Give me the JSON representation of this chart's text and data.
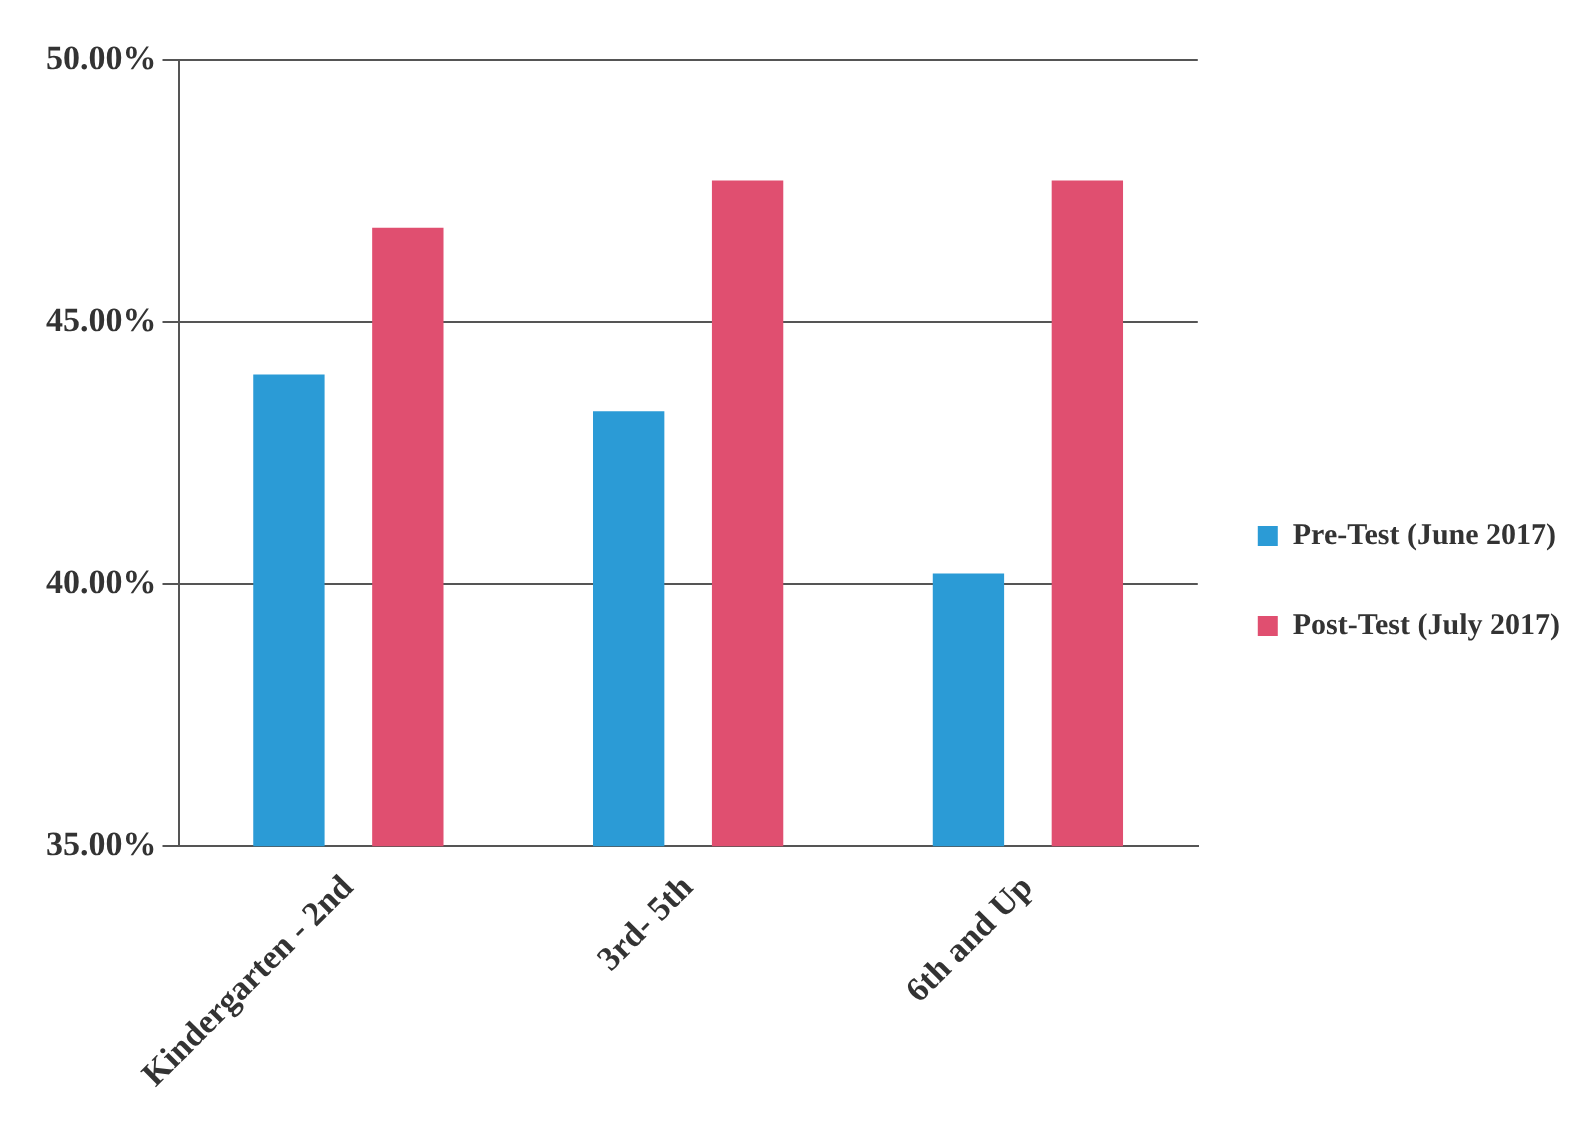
{
  "chart_data": {
    "type": "bar",
    "categories": [
      "Kindergarten - 2nd",
      "3rd- 5th",
      "6th and Up"
    ],
    "series": [
      {
        "name": "Pre-Test (June 2017)",
        "color": "#2b9bd6",
        "values": [
          44.0,
          43.3,
          40.2
        ]
      },
      {
        "name": "Post-Test (July 2017)",
        "color": "#e04f70",
        "values": [
          46.8,
          47.7,
          47.7
        ]
      }
    ],
    "ylim": [
      35,
      50
    ],
    "yticks": [
      {
        "value": 35,
        "label": "35.00%"
      },
      {
        "value": 40,
        "label": "40.00%"
      },
      {
        "value": 45,
        "label": "45.00%"
      },
      {
        "value": 50,
        "label": "50.00%"
      }
    ],
    "grid": "y",
    "legend": "right"
  }
}
